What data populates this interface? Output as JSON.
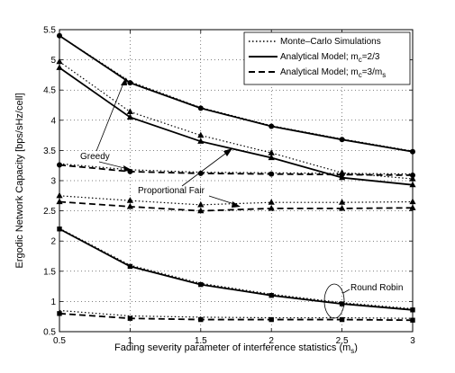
{
  "chart_data": {
    "type": "line",
    "xlabel": "Fading severity parameter of interference statistics (m",
    "xlabel_sub": "s",
    "xlabel_close": ")",
    "ylabel": "Ergodic Network Capacity [bps/sHz/cell]",
    "xlim": [
      0.5,
      3
    ],
    "ylim": [
      0.5,
      5.5
    ],
    "grid": true,
    "legend_position": "top-right",
    "x_ticks": [
      "0.5",
      "1",
      "1.5",
      "2",
      "2.5",
      "3"
    ],
    "y_ticks": [
      "0.5",
      "1",
      "1.5",
      "2",
      "2.5",
      "3",
      "3.5",
      "4",
      "4.5",
      "5",
      "5.5"
    ],
    "legend": {
      "entry1": "Monte–Carlo Simulations",
      "entry2_pre": "Analytical Model; m",
      "entry2_sub": "c",
      "entry2_post": "=2/3",
      "entry3_pre": "Analytical Model; m",
      "entry3_sub": "c",
      "entry3_mid": "=3/m",
      "entry3_sub2": "s"
    },
    "annotations": {
      "greedy": "Greedy",
      "proportional_fair": "Proportional Fair",
      "round_robin": "Round Robin"
    },
    "x": [
      0.5,
      1,
      1.5,
      2,
      2.5,
      3
    ],
    "series": [
      {
        "style": "solid",
        "marker": "circle",
        "values": [
          5.4,
          4.62,
          4.2,
          3.9,
          3.68,
          3.48
        ]
      },
      {
        "style": "dotted",
        "marker": "circle",
        "values": [
          5.4,
          4.64,
          4.21,
          3.91,
          3.69,
          3.49
        ]
      },
      {
        "style": "solid",
        "marker": "triangle",
        "values": [
          4.87,
          4.05,
          3.65,
          3.38,
          3.05,
          2.93
        ]
      },
      {
        "style": "dotted",
        "marker": "triangle",
        "values": [
          4.97,
          4.14,
          3.75,
          3.46,
          3.13,
          3.03
        ]
      },
      {
        "style": "dashed",
        "marker": "circle",
        "values": [
          3.26,
          3.15,
          3.12,
          3.11,
          3.1,
          3.09
        ]
      },
      {
        "style": "dotted",
        "marker": "circle",
        "values": [
          3.28,
          3.18,
          3.14,
          3.13,
          3.12,
          3.11
        ]
      },
      {
        "style": "dashed",
        "marker": "triangle",
        "values": [
          2.65,
          2.57,
          2.5,
          2.54,
          2.54,
          2.55
        ]
      },
      {
        "style": "dotted",
        "marker": "triangle",
        "values": [
          2.75,
          2.67,
          2.6,
          2.64,
          2.64,
          2.65
        ]
      },
      {
        "style": "solid",
        "marker": "square",
        "values": [
          2.2,
          1.58,
          1.28,
          1.1,
          0.96,
          0.86
        ]
      },
      {
        "style": "dotted",
        "marker": "square",
        "values": [
          2.21,
          1.6,
          1.3,
          1.12,
          0.98,
          0.88
        ]
      },
      {
        "style": "dashed",
        "marker": "square",
        "values": [
          0.8,
          0.72,
          0.7,
          0.7,
          0.7,
          0.69
        ]
      },
      {
        "style": "dotted",
        "marker": "square",
        "values": [
          0.85,
          0.76,
          0.74,
          0.73,
          0.73,
          0.72
        ]
      }
    ]
  }
}
